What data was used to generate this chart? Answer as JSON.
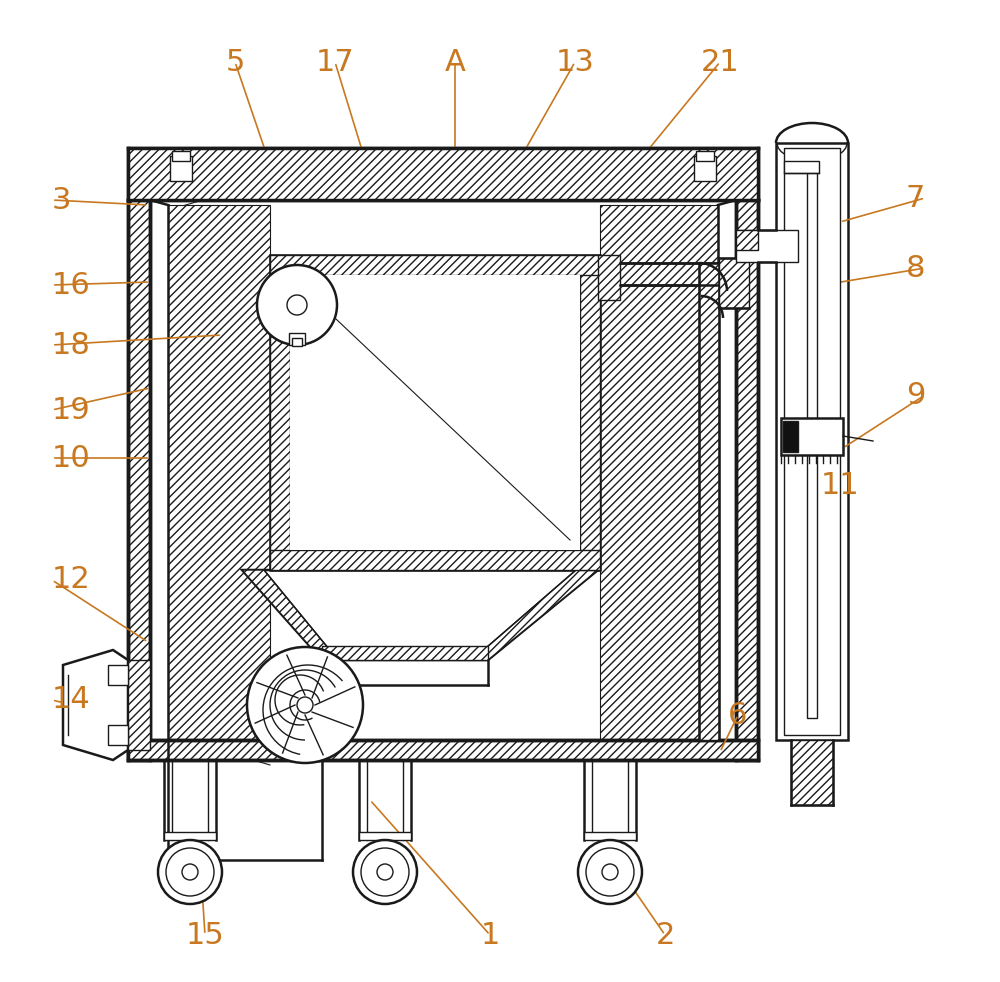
{
  "bg_color": "#ffffff",
  "lc": "#1a1a1a",
  "label_color": "#c87820",
  "fig_width": 10.0,
  "fig_height": 9.82,
  "dpi": 100,
  "annotations": [
    [
      "1",
      490,
      935,
      370,
      800
    ],
    [
      "2",
      665,
      935,
      610,
      855
    ],
    [
      "3",
      52,
      200,
      148,
      205
    ],
    [
      "5",
      235,
      62,
      265,
      150
    ],
    [
      "6",
      738,
      715,
      720,
      752
    ],
    [
      "7",
      925,
      198,
      840,
      222
    ],
    [
      "8",
      925,
      268,
      823,
      285
    ],
    [
      "9",
      925,
      395,
      843,
      448
    ],
    [
      "10",
      52,
      458,
      150,
      458
    ],
    [
      "11",
      840,
      485,
      803,
      545
    ],
    [
      "12",
      52,
      580,
      148,
      642
    ],
    [
      "13",
      575,
      62,
      525,
      150
    ],
    [
      "14",
      52,
      700,
      148,
      723
    ],
    [
      "15",
      205,
      935,
      200,
      858
    ],
    [
      "16",
      52,
      285,
      150,
      282
    ],
    [
      "17",
      335,
      62,
      362,
      150
    ],
    [
      "18",
      52,
      345,
      222,
      335
    ],
    [
      "19",
      52,
      410,
      150,
      388
    ],
    [
      "21",
      720,
      62,
      648,
      150
    ],
    [
      "A",
      455,
      62,
      455,
      150
    ]
  ]
}
